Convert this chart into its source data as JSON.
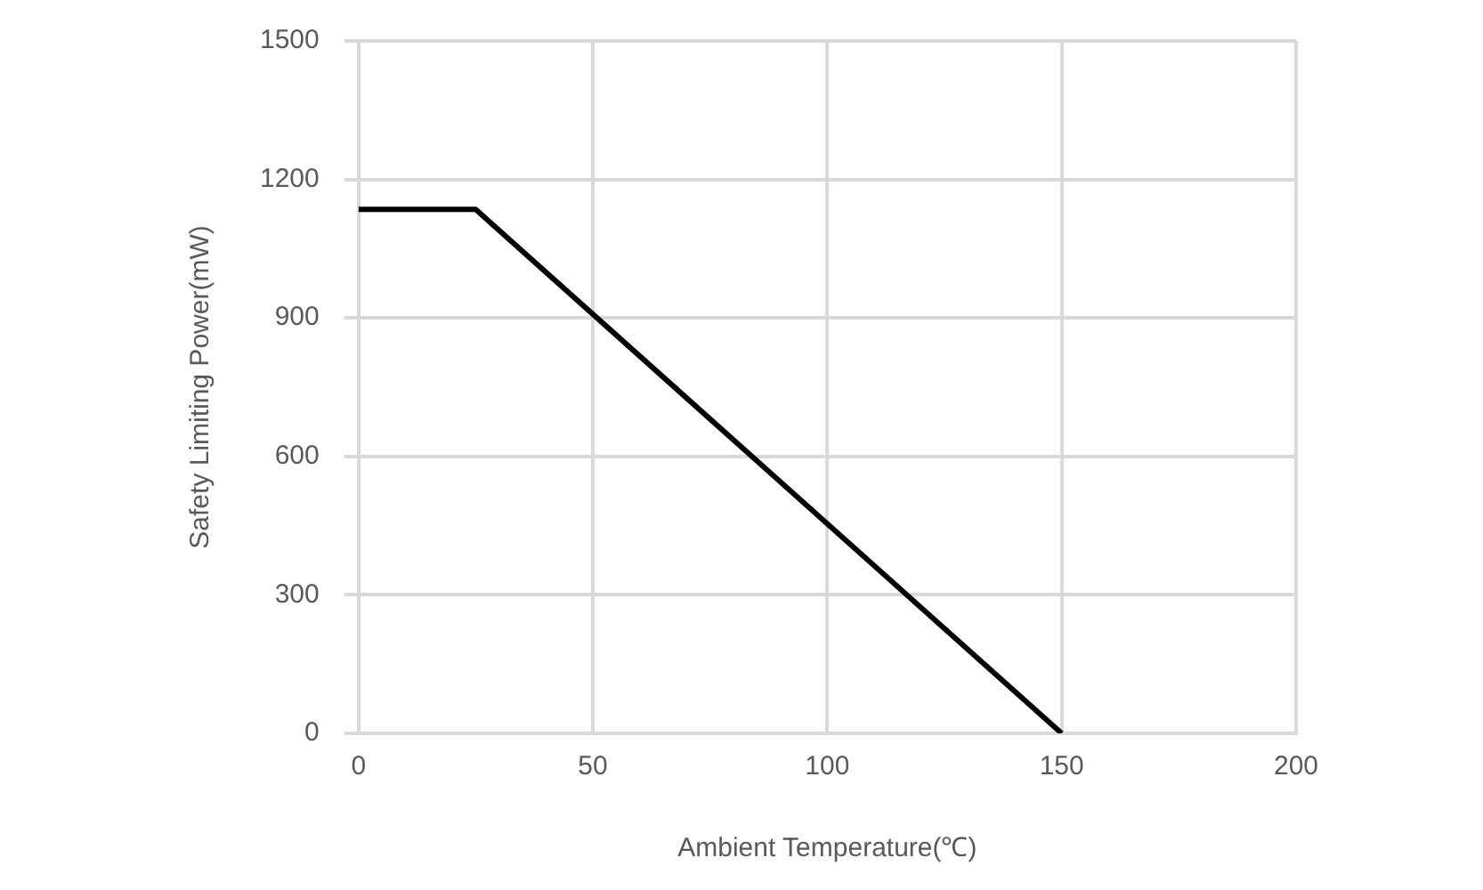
{
  "chart_data": {
    "type": "line",
    "xlabel": "Ambient Temperature(℃)",
    "ylabel": "Safety Limiting Power(mW)",
    "x": [
      0,
      25,
      150
    ],
    "series": [
      {
        "color": "#000000",
        "values": [
          1135,
          1135,
          0
        ]
      }
    ],
    "xlim": [
      0,
      200
    ],
    "xticks": [
      0,
      50,
      100,
      150,
      200
    ],
    "ylim": [
      0,
      1500
    ],
    "yticks": [
      0,
      300,
      600,
      900,
      1200,
      1500
    ],
    "grid": true,
    "legend": false,
    "marker": "none",
    "line_style": "solid"
  }
}
